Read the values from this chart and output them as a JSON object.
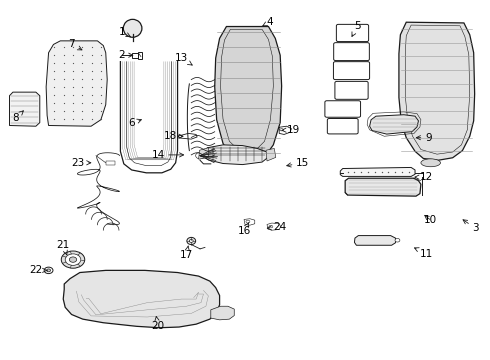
{
  "bg_color": "#ffffff",
  "line_color": "#1a1a1a",
  "text_color": "#000000",
  "callouts": [
    {
      "id": "1",
      "arrow_to": [
        0.272,
        0.895
      ],
      "label_at": [
        0.248,
        0.912
      ]
    },
    {
      "id": "2",
      "arrow_to": [
        0.278,
        0.848
      ],
      "label_at": [
        0.248,
        0.848
      ]
    },
    {
      "id": "3",
      "arrow_to": [
        0.94,
        0.395
      ],
      "label_at": [
        0.972,
        0.365
      ]
    },
    {
      "id": "4",
      "arrow_to": [
        0.53,
        0.925
      ],
      "label_at": [
        0.55,
        0.94
      ]
    },
    {
      "id": "5",
      "arrow_to": [
        0.718,
        0.898
      ],
      "label_at": [
        0.73,
        0.93
      ]
    },
    {
      "id": "6",
      "arrow_to": [
        0.295,
        0.672
      ],
      "label_at": [
        0.268,
        0.658
      ]
    },
    {
      "id": "7",
      "arrow_to": [
        0.173,
        0.858
      ],
      "label_at": [
        0.145,
        0.878
      ]
    },
    {
      "id": "8",
      "arrow_to": [
        0.052,
        0.7
      ],
      "label_at": [
        0.03,
        0.672
      ]
    },
    {
      "id": "9",
      "arrow_to": [
        0.843,
        0.618
      ],
      "label_at": [
        0.875,
        0.618
      ]
    },
    {
      "id": "10",
      "arrow_to": [
        0.862,
        0.408
      ],
      "label_at": [
        0.88,
        0.388
      ]
    },
    {
      "id": "11",
      "arrow_to": [
        0.84,
        0.315
      ],
      "label_at": [
        0.872,
        0.295
      ]
    },
    {
      "id": "12",
      "arrow_to": [
        0.84,
        0.508
      ],
      "label_at": [
        0.872,
        0.508
      ]
    },
    {
      "id": "13",
      "arrow_to": [
        0.398,
        0.815
      ],
      "label_at": [
        0.37,
        0.84
      ]
    },
    {
      "id": "14",
      "arrow_to": [
        0.382,
        0.57
      ],
      "label_at": [
        0.322,
        0.57
      ]
    },
    {
      "id": "15",
      "arrow_to": [
        0.578,
        0.538
      ],
      "label_at": [
        0.618,
        0.548
      ]
    },
    {
      "id": "16",
      "arrow_to": [
        0.508,
        0.382
      ],
      "label_at": [
        0.498,
        0.358
      ]
    },
    {
      "id": "17",
      "arrow_to": [
        0.385,
        0.325
      ],
      "label_at": [
        0.38,
        0.29
      ]
    },
    {
      "id": "18",
      "arrow_to": [
        0.375,
        0.622
      ],
      "label_at": [
        0.348,
        0.622
      ]
    },
    {
      "id": "19",
      "arrow_to": [
        0.568,
        0.638
      ],
      "label_at": [
        0.6,
        0.64
      ]
    },
    {
      "id": "20",
      "arrow_to": [
        0.318,
        0.122
      ],
      "label_at": [
        0.322,
        0.092
      ]
    },
    {
      "id": "21",
      "arrow_to": [
        0.138,
        0.282
      ],
      "label_at": [
        0.128,
        0.318
      ]
    },
    {
      "id": "22",
      "arrow_to": [
        0.096,
        0.248
      ],
      "label_at": [
        0.072,
        0.248
      ]
    },
    {
      "id": "23",
      "arrow_to": [
        0.192,
        0.548
      ],
      "label_at": [
        0.158,
        0.548
      ]
    },
    {
      "id": "24",
      "arrow_to": [
        0.538,
        0.365
      ],
      "label_at": [
        0.572,
        0.368
      ]
    }
  ]
}
